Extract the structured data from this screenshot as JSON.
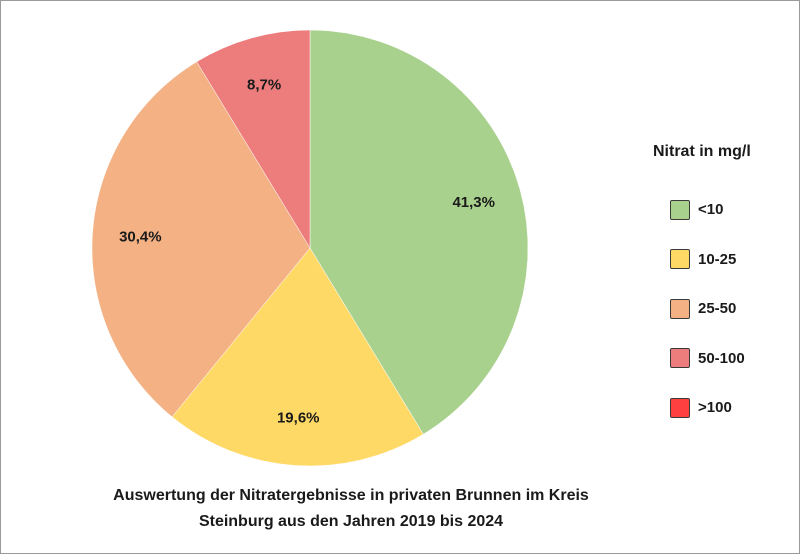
{
  "chart_data": {
    "type": "pie",
    "categories": [
      "<10",
      "10-25",
      "25-50",
      "50-100",
      ">100"
    ],
    "values": [
      41.3,
      19.6,
      30.4,
      8.7,
      0
    ],
    "value_labels": [
      "41,3%",
      "19,6%",
      "30,4%",
      "8,7%",
      ""
    ],
    "colors": [
      "#a9d18e",
      "#ffd966",
      "#f4b183",
      "#ed7d7d",
      "#ff4040"
    ],
    "legend_title": "Nitrat in mg/l",
    "legend_position": "right",
    "title_lines": [
      "Auswertung der Nitratergebnisse in privaten Brunnen im Kreis",
      "Steinburg aus den Jahren 2019 bis 2024"
    ]
  }
}
